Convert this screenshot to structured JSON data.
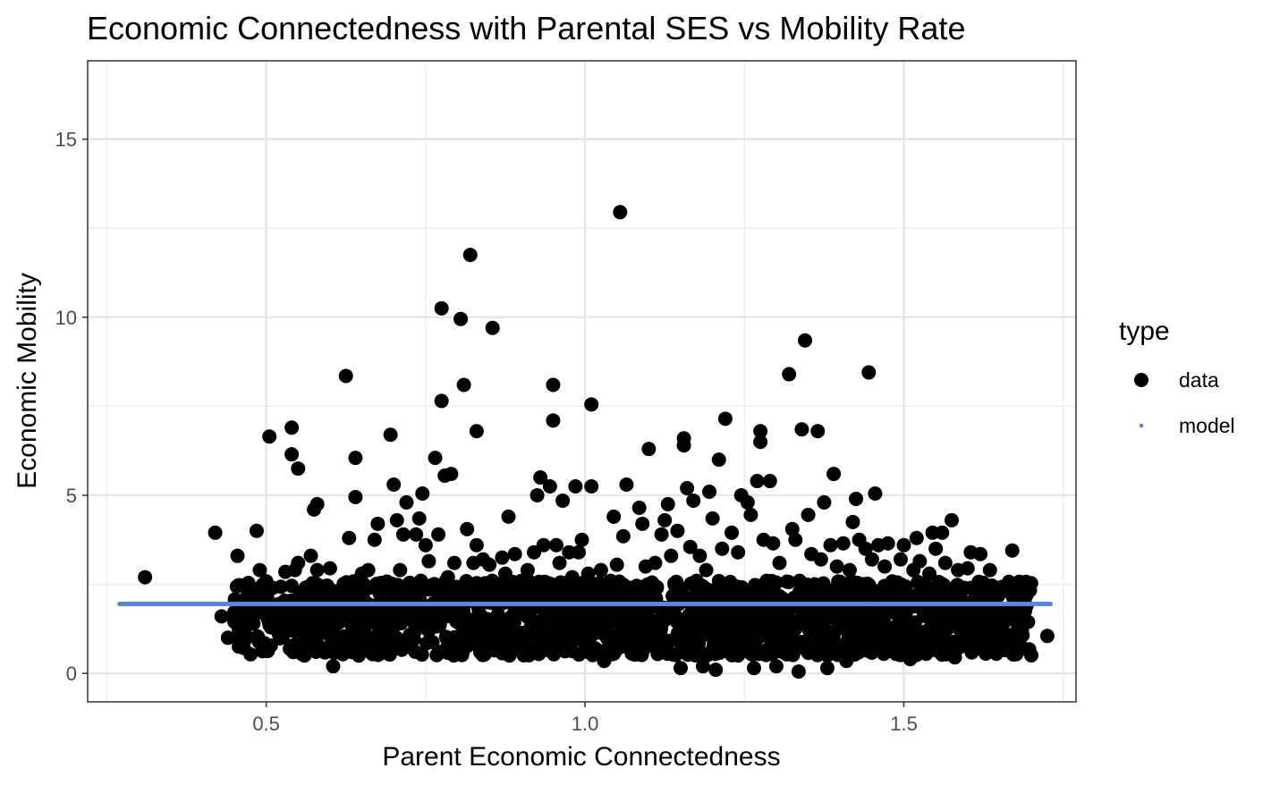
{
  "chart_data": {
    "type": "scatter",
    "title": "Economic Connectedness with Parental SES vs Mobility Rate",
    "xlabel": "Parent Economic Connectedness",
    "ylabel": "Economic Mobility",
    "xlim": [
      0.22,
      1.77
    ],
    "ylim": [
      -0.8,
      17.2
    ],
    "x_ticks": [
      0.5,
      1.0,
      1.5
    ],
    "x_tick_labels": [
      "0.5",
      "1.0",
      "1.5"
    ],
    "y_ticks": [
      0,
      5,
      10,
      15
    ],
    "y_tick_labels": [
      "0",
      "5",
      "10",
      "15"
    ],
    "grid": true,
    "legend": {
      "title": "type",
      "position": "right",
      "entries": [
        {
          "label": "data",
          "color": "#000000",
          "marker": "large-dot"
        },
        {
          "label": "model",
          "color": "#5b84e0",
          "marker": "small-dot"
        }
      ]
    },
    "model_line": {
      "x": [
        0.27,
        1.73
      ],
      "y": [
        1.95,
        1.95
      ],
      "color": "#5b84e0"
    },
    "points": [
      [
        0.31,
        2.7
      ],
      [
        0.42,
        3.95
      ],
      [
        0.43,
        1.6
      ],
      [
        0.45,
        1.5
      ],
      [
        0.44,
        1.0
      ],
      [
        0.46,
        1.05
      ],
      [
        0.455,
        3.3
      ],
      [
        0.47,
        1.0
      ],
      [
        0.48,
        1.4
      ],
      [
        0.485,
        4.0
      ],
      [
        0.49,
        2.9
      ],
      [
        0.49,
        2.3
      ],
      [
        0.5,
        1.9
      ],
      [
        0.505,
        6.65
      ],
      [
        0.505,
        0.75
      ],
      [
        0.51,
        2.4
      ],
      [
        0.52,
        1.1
      ],
      [
        0.525,
        1.45
      ],
      [
        0.53,
        2.85
      ],
      [
        0.54,
        6.9
      ],
      [
        0.54,
        6.15
      ],
      [
        0.545,
        2.9
      ],
      [
        0.55,
        5.75
      ],
      [
        0.55,
        3.1
      ],
      [
        0.56,
        2.15
      ],
      [
        0.56,
        0.5
      ],
      [
        0.565,
        1.4
      ],
      [
        0.57,
        3.3
      ],
      [
        0.575,
        4.6
      ],
      [
        0.58,
        4.75
      ],
      [
        0.58,
        2.9
      ],
      [
        0.585,
        1.95
      ],
      [
        0.59,
        1.2
      ],
      [
        0.6,
        2.95
      ],
      [
        0.605,
        0.2
      ],
      [
        0.61,
        2.3
      ],
      [
        0.62,
        1.0
      ],
      [
        0.625,
        8.35
      ],
      [
        0.63,
        3.8
      ],
      [
        0.635,
        2.15
      ],
      [
        0.64,
        6.05
      ],
      [
        0.64,
        4.95
      ],
      [
        0.645,
        0.5
      ],
      [
        0.65,
        2.8
      ],
      [
        0.655,
        1.3
      ],
      [
        0.66,
        2.9
      ],
      [
        0.665,
        1.7
      ],
      [
        0.67,
        3.75
      ],
      [
        0.675,
        4.2
      ],
      [
        0.68,
        2.4
      ],
      [
        0.685,
        1.9
      ],
      [
        0.69,
        1.15
      ],
      [
        0.695,
        6.7
      ],
      [
        0.7,
        5.3
      ],
      [
        0.705,
        4.3
      ],
      [
        0.71,
        2.9
      ],
      [
        0.715,
        3.9
      ],
      [
        0.72,
        4.8
      ],
      [
        0.73,
        2.2
      ],
      [
        0.735,
        3.9
      ],
      [
        0.74,
        4.35
      ],
      [
        0.745,
        5.05
      ],
      [
        0.75,
        3.6
      ],
      [
        0.755,
        3.15
      ],
      [
        0.76,
        1.3
      ],
      [
        0.765,
        6.05
      ],
      [
        0.77,
        3.9
      ],
      [
        0.775,
        7.65
      ],
      [
        0.775,
        10.25
      ],
      [
        0.78,
        5.55
      ],
      [
        0.785,
        2.7
      ],
      [
        0.79,
        5.6
      ],
      [
        0.795,
        3.1
      ],
      [
        0.8,
        1.6
      ],
      [
        0.805,
        9.95
      ],
      [
        0.81,
        8.1
      ],
      [
        0.815,
        4.05
      ],
      [
        0.82,
        11.75
      ],
      [
        0.825,
        3.1
      ],
      [
        0.83,
        6.8
      ],
      [
        0.83,
        3.6
      ],
      [
        0.835,
        2.3
      ],
      [
        0.84,
        3.2
      ],
      [
        0.845,
        2.0
      ],
      [
        0.85,
        3.05
      ],
      [
        0.855,
        9.7
      ],
      [
        0.86,
        2.5
      ],
      [
        0.865,
        1.2
      ],
      [
        0.87,
        3.25
      ],
      [
        0.875,
        2.8
      ],
      [
        0.88,
        4.4
      ],
      [
        0.885,
        1.6
      ],
      [
        0.89,
        3.35
      ],
      [
        0.9,
        2.6
      ],
      [
        0.905,
        2.1
      ],
      [
        0.91,
        2.9
      ],
      [
        0.915,
        1.3
      ],
      [
        0.92,
        3.4
      ],
      [
        0.925,
        5.0
      ],
      [
        0.93,
        5.5
      ],
      [
        0.935,
        3.6
      ],
      [
        0.94,
        2.45
      ],
      [
        0.945,
        5.25
      ],
      [
        0.95,
        8.1
      ],
      [
        0.95,
        7.1
      ],
      [
        0.955,
        3.6
      ],
      [
        0.96,
        3.1
      ],
      [
        0.965,
        4.85
      ],
      [
        0.97,
        2.0
      ],
      [
        0.975,
        3.4
      ],
      [
        0.98,
        2.7
      ],
      [
        0.985,
        5.25
      ],
      [
        0.99,
        3.4
      ],
      [
        0.995,
        3.75
      ],
      [
        1.0,
        1.9
      ],
      [
        1.005,
        2.8
      ],
      [
        1.01,
        7.55
      ],
      [
        1.01,
        5.25
      ],
      [
        1.015,
        2.5
      ],
      [
        1.02,
        1.3
      ],
      [
        1.025,
        2.9
      ],
      [
        1.03,
        0.35
      ],
      [
        1.04,
        2.6
      ],
      [
        1.045,
        4.4
      ],
      [
        1.05,
        3.05
      ],
      [
        1.055,
        12.95
      ],
      [
        1.06,
        3.85
      ],
      [
        1.065,
        5.3
      ],
      [
        1.07,
        2.4
      ],
      [
        1.075,
        1.8
      ],
      [
        1.08,
        0.9
      ],
      [
        1.085,
        4.65
      ],
      [
        1.09,
        4.2
      ],
      [
        1.095,
        3.0
      ],
      [
        1.1,
        6.3
      ],
      [
        1.105,
        2.55
      ],
      [
        1.11,
        3.1
      ],
      [
        1.115,
        1.5
      ],
      [
        1.12,
        3.9
      ],
      [
        1.125,
        4.3
      ],
      [
        1.13,
        4.75
      ],
      [
        1.135,
        3.3
      ],
      [
        1.14,
        2.2
      ],
      [
        1.145,
        4.0
      ],
      [
        1.15,
        0.15
      ],
      [
        1.155,
        6.6
      ],
      [
        1.155,
        6.4
      ],
      [
        1.16,
        5.2
      ],
      [
        1.165,
        3.55
      ],
      [
        1.17,
        4.85
      ],
      [
        1.175,
        2.6
      ],
      [
        1.18,
        3.3
      ],
      [
        1.185,
        0.2
      ],
      [
        1.19,
        2.9
      ],
      [
        1.195,
        5.1
      ],
      [
        1.2,
        4.35
      ],
      [
        1.205,
        0.1
      ],
      [
        1.21,
        6.0
      ],
      [
        1.215,
        3.5
      ],
      [
        1.22,
        7.15
      ],
      [
        1.225,
        2.4
      ],
      [
        1.23,
        3.95
      ],
      [
        1.24,
        3.4
      ],
      [
        1.245,
        5.0
      ],
      [
        1.25,
        2.0
      ],
      [
        1.255,
        4.8
      ],
      [
        1.26,
        4.45
      ],
      [
        1.265,
        0.15
      ],
      [
        1.27,
        5.4
      ],
      [
        1.275,
        6.8
      ],
      [
        1.275,
        6.5
      ],
      [
        1.28,
        3.75
      ],
      [
        1.285,
        2.6
      ],
      [
        1.29,
        5.4
      ],
      [
        1.295,
        3.65
      ],
      [
        1.3,
        0.2
      ],
      [
        1.305,
        3.1
      ],
      [
        1.31,
        2.1
      ],
      [
        1.315,
        1.2
      ],
      [
        1.32,
        8.4
      ],
      [
        1.325,
        4.05
      ],
      [
        1.33,
        3.75
      ],
      [
        1.335,
        0.05
      ],
      [
        1.34,
        6.85
      ],
      [
        1.345,
        9.35
      ],
      [
        1.35,
        4.45
      ],
      [
        1.355,
        3.35
      ],
      [
        1.36,
        2.5
      ],
      [
        1.365,
        6.8
      ],
      [
        1.37,
        3.2
      ],
      [
        1.375,
        4.8
      ],
      [
        1.38,
        0.15
      ],
      [
        1.385,
        3.6
      ],
      [
        1.39,
        5.6
      ],
      [
        1.395,
        3.0
      ],
      [
        1.4,
        2.3
      ],
      [
        1.405,
        3.65
      ],
      [
        1.41,
        0.35
      ],
      [
        1.415,
        2.9
      ],
      [
        1.42,
        4.25
      ],
      [
        1.425,
        4.9
      ],
      [
        1.43,
        3.75
      ],
      [
        1.435,
        2.5
      ],
      [
        1.44,
        3.5
      ],
      [
        1.445,
        8.45
      ],
      [
        1.45,
        3.2
      ],
      [
        1.455,
        5.05
      ],
      [
        1.46,
        3.6
      ],
      [
        1.465,
        2.2
      ],
      [
        1.47,
        3.0
      ],
      [
        1.475,
        3.65
      ],
      [
        1.48,
        1.0
      ],
      [
        1.49,
        2.55
      ],
      [
        1.495,
        3.2
      ],
      [
        1.5,
        3.6
      ],
      [
        1.505,
        1.3
      ],
      [
        1.51,
        0.4
      ],
      [
        1.515,
        2.9
      ],
      [
        1.52,
        3.8
      ],
      [
        1.525,
        3.15
      ],
      [
        1.53,
        1.9
      ],
      [
        1.535,
        0.55
      ],
      [
        1.54,
        2.8
      ],
      [
        1.545,
        3.95
      ],
      [
        1.55,
        3.5
      ],
      [
        1.555,
        2.5
      ],
      [
        1.56,
        3.95
      ],
      [
        1.565,
        3.1
      ],
      [
        1.57,
        1.8
      ],
      [
        1.575,
        4.3
      ],
      [
        1.58,
        0.45
      ],
      [
        1.585,
        2.9
      ],
      [
        1.59,
        2.1
      ],
      [
        1.595,
        1.3
      ],
      [
        1.6,
        2.95
      ],
      [
        1.605,
        3.4
      ],
      [
        1.61,
        2.4
      ],
      [
        1.615,
        0.75
      ],
      [
        1.62,
        3.35
      ],
      [
        1.625,
        1.9
      ],
      [
        1.63,
        1.4
      ],
      [
        1.635,
        2.9
      ],
      [
        1.64,
        1.8
      ],
      [
        1.645,
        0.55
      ],
      [
        1.65,
        0.75
      ],
      [
        1.655,
        1.15
      ],
      [
        1.66,
        1.5
      ],
      [
        1.665,
        1.75
      ],
      [
        1.67,
        3.45
      ],
      [
        1.675,
        1.1
      ],
      [
        1.68,
        1.1
      ],
      [
        1.685,
        1.7
      ],
      [
        1.69,
        1.75
      ],
      [
        1.725,
        1.05
      ]
    ],
    "dense_band": {
      "x_range": [
        0.45,
        1.7
      ],
      "y_range": [
        0.5,
        2.6
      ],
      "approx_points": 1500
    }
  }
}
